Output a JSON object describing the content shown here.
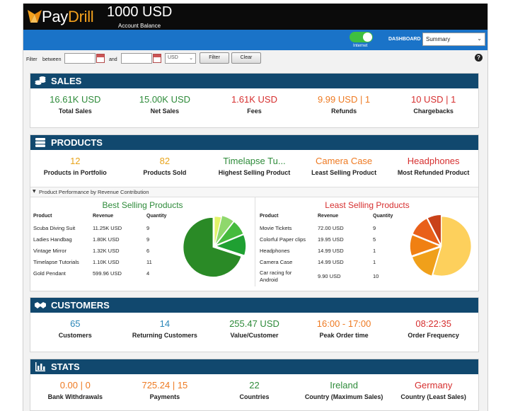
{
  "header": {
    "brand_pay": "Pay",
    "brand_drill": "Drill",
    "balance": "1000 USD",
    "balance_label": "Account Balance"
  },
  "nav": {
    "internet_label": "Internet",
    "dashboard_label": "DASHBOARD",
    "dashboard_selected": "Summary",
    "internet_on": true
  },
  "filter": {
    "label": "Filter",
    "between": "between",
    "and": "and",
    "from_value": "",
    "to_value": "",
    "currency": "USD",
    "filter_button": "Filter",
    "clear_button": "Clear",
    "help": "?"
  },
  "sales": {
    "title": "SALES",
    "items": [
      {
        "value": "16.61K USD",
        "label": "Total Sales",
        "color": "#2e8b3a"
      },
      {
        "value": "15.00K USD",
        "label": "Net Sales",
        "color": "#2e8b3a"
      },
      {
        "value": "1.61K USD",
        "label": "Fees",
        "color": "#d62f2f"
      },
      {
        "value": "9.99 USD | 1",
        "label": "Refunds",
        "color": "#ee7a22"
      },
      {
        "value": "10 USD | 1",
        "label": "Chargebacks",
        "color": "#d62f2f"
      }
    ]
  },
  "products": {
    "title": "PRODUCTS",
    "items": [
      {
        "value": "12",
        "label": "Products in Portfolio",
        "color": "#e8a41b"
      },
      {
        "value": "82",
        "label": "Products Sold",
        "color": "#e8a41b"
      },
      {
        "value": "Timelapse Tu...",
        "label": "Highest Selling Product",
        "color": "#2e8b3a"
      },
      {
        "value": "Camera Case",
        "label": "Least Selling Product",
        "color": "#ee7a22"
      },
      {
        "value": "Headphones",
        "label": "Most Refunded Product",
        "color": "#d62f2f"
      }
    ],
    "perf_title": "Product Performance by Revenue Contribution",
    "best": {
      "title": "Best Selling Products",
      "headers": [
        "Product",
        "Revenue",
        "Quantity"
      ],
      "rows": [
        {
          "product": "Scuba Diving Suit",
          "revenue": "11.25K USD",
          "quantity": "9"
        },
        {
          "product": "Ladies Handbag",
          "revenue": "1.80K USD",
          "quantity": "9"
        },
        {
          "product": "Vintage Mirror",
          "revenue": "1.32K USD",
          "quantity": "6"
        },
        {
          "product": "Timelapse Tutorials",
          "revenue": "1.10K USD",
          "quantity": "11"
        },
        {
          "product": "Gold Pendant",
          "revenue": "599.96 USD",
          "quantity": "4"
        }
      ],
      "slices": [
        {
          "value": 11250,
          "color": "#2a8a26"
        },
        {
          "value": 1800,
          "color": "#1fa032"
        },
        {
          "value": 1320,
          "color": "#46bb3e"
        },
        {
          "value": 1100,
          "color": "#8fd86c"
        },
        {
          "value": 599.96,
          "color": "#e2f36a"
        }
      ]
    },
    "least": {
      "title": "Least Selling Products",
      "headers": [
        "Product",
        "Revenue",
        "Quantity"
      ],
      "rows": [
        {
          "product": "Movie Tickets",
          "revenue": "72.00 USD",
          "quantity": "9"
        },
        {
          "product": "Colorful Paper clips",
          "revenue": "19.95 USD",
          "quantity": "5"
        },
        {
          "product": "Headphones",
          "revenue": "14.99 USD",
          "quantity": "1"
        },
        {
          "product": "Camera Case",
          "revenue": "14.99 USD",
          "quantity": "1"
        },
        {
          "product": "Car racing for Android",
          "revenue": "9.90 USD",
          "quantity": "10"
        }
      ],
      "slices": [
        {
          "value": 72.0,
          "color": "#fdd05c"
        },
        {
          "value": 19.95,
          "color": "#f0a01a"
        },
        {
          "value": 14.99,
          "color": "#f08012"
        },
        {
          "value": 14.99,
          "color": "#e9601a"
        },
        {
          "value": 9.9,
          "color": "#c9421a"
        }
      ]
    }
  },
  "customers": {
    "title": "CUSTOMERS",
    "items": [
      {
        "value": "65",
        "label": "Customers",
        "color": "#2a86b8"
      },
      {
        "value": "14",
        "label": "Returning Customers",
        "color": "#2a86b8"
      },
      {
        "value": "255.47 USD",
        "label": "Value/Customer",
        "color": "#2e8b3a"
      },
      {
        "value": "16:00 - 17:00",
        "label": "Peak Order time",
        "color": "#ee7a22"
      },
      {
        "value": "08:22:35",
        "label": "Order Frequency",
        "color": "#d62f2f"
      }
    ]
  },
  "stats": {
    "title": "STATS",
    "items": [
      {
        "value": "0.00 | 0",
        "label": "Bank Withdrawals",
        "color": "#ee7a22"
      },
      {
        "value": "725.24 | 15",
        "label": "Payments",
        "color": "#ee7a22"
      },
      {
        "value": "22",
        "label": "Countries",
        "color": "#2e8b3a"
      },
      {
        "value": "Ireland",
        "label": "Country (Maximum Sales)",
        "color": "#2e8b3a"
      },
      {
        "value": "Germany",
        "label": "Country (Least Sales)",
        "color": "#d62f2f"
      }
    ]
  }
}
